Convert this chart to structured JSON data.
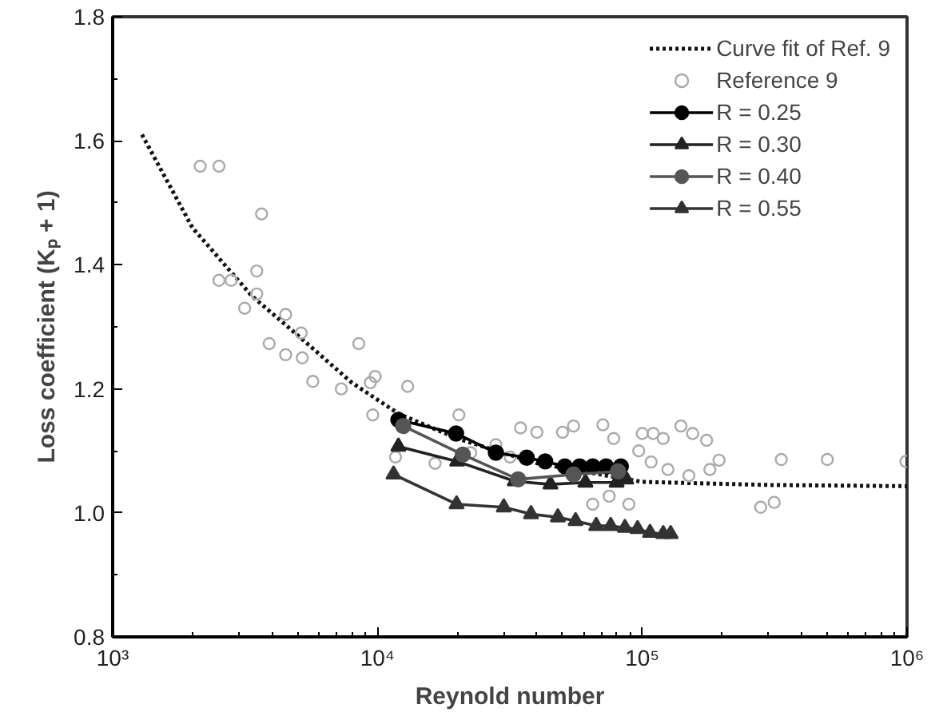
{
  "chart_data": {
    "type": "scatter",
    "xlabel": "Reynold number",
    "ylabel": "Loss coefficient (Kₚ + 1)",
    "log": "x",
    "grid": false,
    "legend": "top right",
    "xlim": [
      1000,
      1000000
    ],
    "ylim": [
      0.8,
      1.8
    ],
    "xticks": [
      {
        "value": 1000,
        "label": "10³"
      },
      {
        "value": 10000,
        "label": "10⁴"
      },
      {
        "value": 100000,
        "label": "10⁵"
      },
      {
        "value": 1000000,
        "label": "10⁶"
      }
    ],
    "yticks": [
      {
        "value": 0.8,
        "label": "0.8"
      },
      {
        "value": 1.0,
        "label": "1.0"
      },
      {
        "value": 1.2,
        "label": "1.2"
      },
      {
        "value": 1.4,
        "label": "1.4"
      },
      {
        "value": 1.6,
        "label": "1.6"
      },
      {
        "value": 1.8,
        "label": "1.8"
      }
    ],
    "series": [
      {
        "name": "Curve fit of Ref. 9",
        "type": "line",
        "line_style": "dotted",
        "marker": "none",
        "color": "#111111",
        "x": [
          1290,
          2000,
          3350,
          5200,
          8000,
          12000,
          20000,
          40000,
          100000,
          300000,
          1000000
        ],
        "values": [
          1.61,
          1.46,
          1.35,
          1.28,
          1.21,
          1.16,
          1.12,
          1.08,
          1.05,
          1.045,
          1.043
        ]
      },
      {
        "name": "Reference 9",
        "marker": "circle",
        "color": "#aaaaaa",
        "x": [
          2140,
          2520,
          3650,
          2520,
          2800,
          3500,
          3500,
          3150,
          4500,
          5150,
          3900,
          4500,
          5200,
          8500,
          5700,
          7300,
          9400,
          9800,
          13000,
          9600,
          20300,
          11700,
          16500,
          22500,
          34700,
          40000,
          50000,
          55000,
          71000,
          78000,
          100000,
          110000,
          120000,
          140000,
          155000,
          175000,
          195000,
          97000,
          108000,
          125000,
          150000,
          180000,
          65000,
          75000,
          89000,
          280000,
          315000,
          335000,
          500000,
          990000,
          28000,
          31700
        ],
        "values": [
          1.559,
          1.559,
          1.482,
          1.375,
          1.375,
          1.39,
          1.353,
          1.33,
          1.32,
          1.29,
          1.273,
          1.255,
          1.25,
          1.273,
          1.212,
          1.2,
          1.21,
          1.22,
          1.204,
          1.158,
          1.158,
          1.09,
          1.08,
          1.097,
          1.137,
          1.13,
          1.13,
          1.14,
          1.142,
          1.12,
          1.128,
          1.128,
          1.12,
          1.14,
          1.128,
          1.117,
          1.085,
          1.1,
          1.082,
          1.07,
          1.06,
          1.07,
          1.014,
          1.027,
          1.014,
          1.009,
          1.017,
          1.086,
          1.086,
          1.083,
          1.11,
          1.09
        ]
      },
      {
        "name": "R = 0.25",
        "type": "line",
        "marker": "circle",
        "color": "#000000",
        "x": [
          12000,
          19800,
          28000,
          36600,
          43000,
          51000,
          58000,
          65000,
          73000,
          83000
        ],
        "values": [
          1.15,
          1.128,
          1.097,
          1.089,
          1.083,
          1.075,
          1.075,
          1.075,
          1.075,
          1.075
        ]
      },
      {
        "name": "R = 0.30",
        "type": "line",
        "marker": "triangle",
        "color": "#222222",
        "x": [
          12000,
          20000,
          33000,
          45000,
          61000,
          80000,
          87000
        ],
        "values": [
          1.107,
          1.083,
          1.051,
          1.046,
          1.049,
          1.049,
          1.054
        ]
      },
      {
        "name": "R = 0.40",
        "type": "line",
        "marker": "circle",
        "color": "#555555",
        "x": [
          12500,
          21000,
          34000,
          55000,
          81000
        ],
        "values": [
          1.14,
          1.094,
          1.054,
          1.062,
          1.067
        ]
      },
      {
        "name": "R = 0.55",
        "type": "line",
        "marker": "triangle",
        "color": "#333333",
        "x": [
          11500,
          19900,
          30000,
          38000,
          48000,
          56000,
          67000,
          76000,
          86000,
          96000,
          107000,
          120000,
          128000
        ],
        "values": [
          1.062,
          1.014,
          1.009,
          0.998,
          0.993,
          0.987,
          0.979,
          0.979,
          0.976,
          0.974,
          0.968,
          0.966,
          0.966
        ]
      }
    ]
  }
}
